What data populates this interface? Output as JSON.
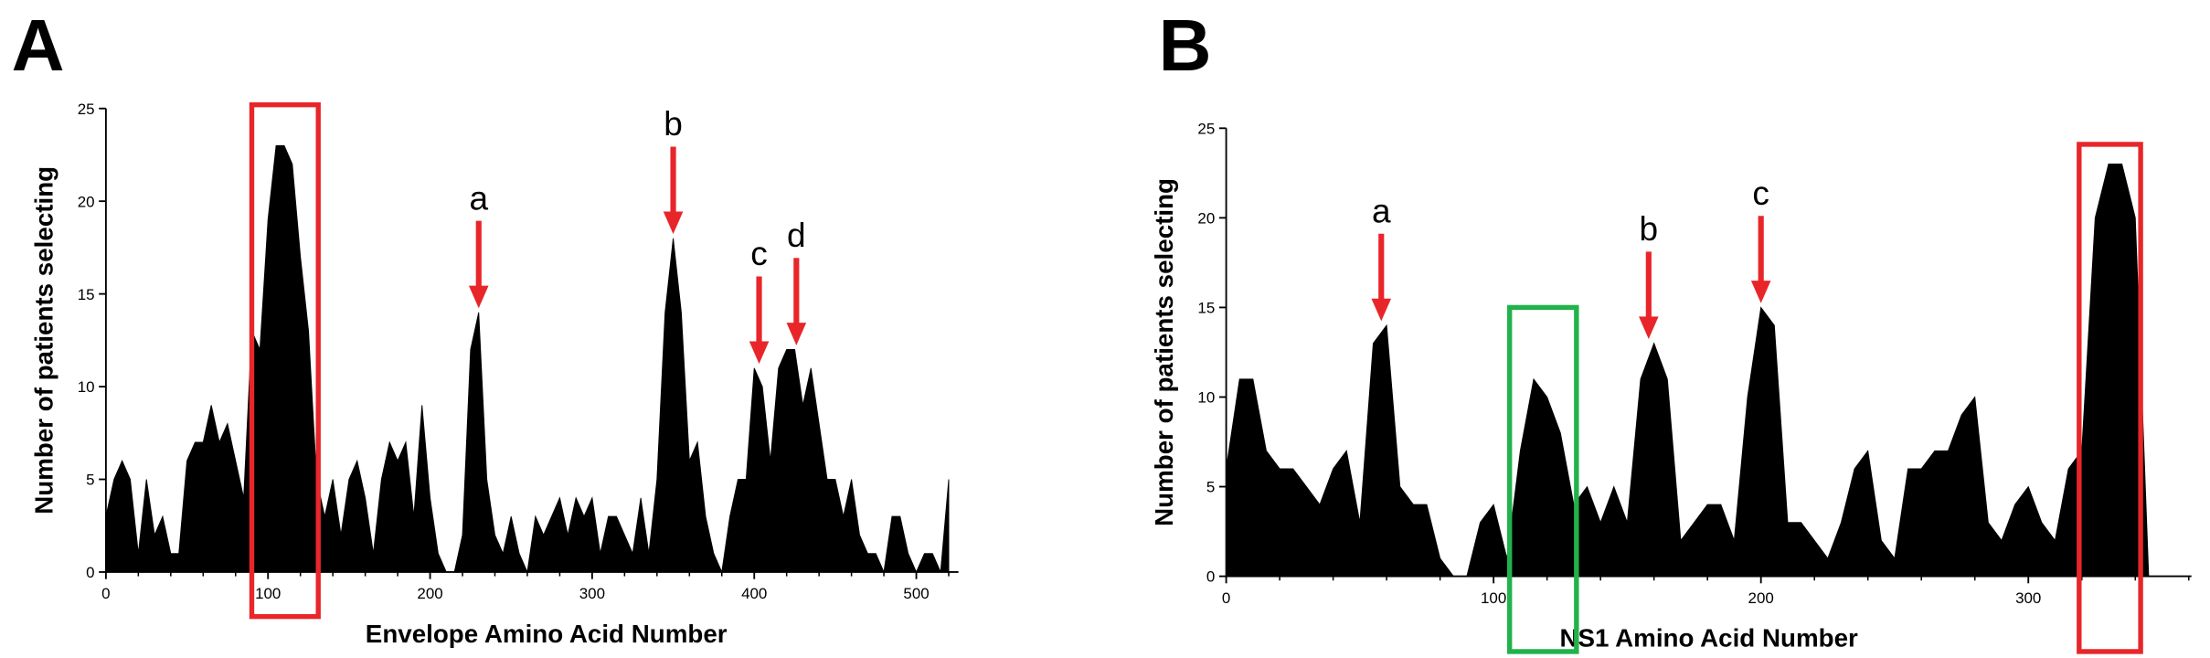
{
  "chart_data": [
    {
      "type": "area",
      "panel_label": "A",
      "xlabel": "Envelope Amino Acid Number",
      "ylabel": "Number of patients selecting",
      "color": "#000000",
      "xlim": [
        0,
        526
      ],
      "ylim": [
        0,
        25
      ],
      "xticks": [
        0,
        100,
        200,
        300,
        400,
        500
      ],
      "yticks": [
        0,
        5,
        10,
        15,
        20,
        25
      ],
      "x": [
        0,
        5,
        10,
        15,
        20,
        25,
        30,
        35,
        40,
        45,
        50,
        55,
        60,
        65,
        70,
        75,
        80,
        85,
        90,
        95,
        100,
        105,
        110,
        115,
        120,
        125,
        130,
        135,
        140,
        145,
        150,
        155,
        160,
        165,
        170,
        175,
        180,
        185,
        190,
        195,
        200,
        205,
        210,
        215,
        220,
        225,
        230,
        235,
        240,
        245,
        250,
        255,
        260,
        265,
        270,
        275,
        280,
        285,
        290,
        295,
        300,
        305,
        310,
        315,
        320,
        325,
        330,
        335,
        340,
        345,
        350,
        355,
        360,
        365,
        370,
        375,
        380,
        385,
        390,
        395,
        400,
        405,
        410,
        415,
        420,
        425,
        430,
        435,
        440,
        445,
        450,
        455,
        460,
        465,
        470,
        475,
        480,
        485,
        490,
        495,
        500,
        505,
        510,
        515,
        520
      ],
      "values": [
        3,
        5,
        6,
        5,
        1,
        5,
        2,
        3,
        1,
        1,
        6,
        7,
        7,
        9,
        7,
        8,
        6,
        4,
        13,
        12,
        19,
        23,
        23,
        22,
        17,
        13,
        5,
        3,
        5,
        2,
        5,
        6,
        4,
        1,
        5,
        7,
        6,
        7,
        3,
        9,
        4,
        1,
        0,
        0,
        2,
        12,
        14,
        5,
        2,
        1,
        3,
        1,
        0,
        3,
        2,
        3,
        4,
        2,
        4,
        3,
        4,
        1,
        3,
        3,
        2,
        1,
        4,
        1,
        5,
        14,
        18,
        14,
        6,
        7,
        3,
        1,
        0,
        3,
        5,
        5,
        11,
        10,
        6,
        11,
        12,
        12,
        9,
        11,
        8,
        5,
        5,
        3,
        5,
        2,
        1,
        1,
        0,
        3,
        3,
        1,
        0,
        1,
        1,
        0,
        5
      ],
      "annotations": [
        {
          "text": "a",
          "x": 230,
          "y": 14
        },
        {
          "text": "b",
          "x": 350,
          "y": 18
        },
        {
          "text": "c",
          "x": 403,
          "y": 11
        },
        {
          "text": "d",
          "x": 426,
          "y": 12
        }
      ],
      "boxes": [
        {
          "x": [
            90,
            131
          ],
          "y": [
            -2.4,
            25.2
          ],
          "color": "#e8262a"
        }
      ]
    },
    {
      "type": "area",
      "panel_label": "B",
      "xlabel": "NS1 Amino Acid Number",
      "ylabel": "Number of patients selecting",
      "color": "#000000",
      "xlim": [
        0,
        361
      ],
      "ylim": [
        0,
        25
      ],
      "xticks": [
        0,
        100,
        200,
        300
      ],
      "yticks": [
        0,
        5,
        10,
        15,
        20,
        25
      ],
      "x": [
        0,
        5,
        10,
        15,
        20,
        25,
        30,
        35,
        40,
        45,
        50,
        55,
        60,
        65,
        70,
        75,
        80,
        85,
        90,
        95,
        100,
        105,
        110,
        115,
        120,
        125,
        130,
        135,
        140,
        145,
        150,
        155,
        160,
        165,
        170,
        175,
        180,
        185,
        190,
        195,
        200,
        205,
        210,
        215,
        220,
        225,
        230,
        235,
        240,
        245,
        250,
        255,
        260,
        265,
        270,
        275,
        280,
        285,
        290,
        295,
        300,
        305,
        310,
        315,
        320,
        325,
        330,
        335,
        340,
        345
      ],
      "values": [
        6,
        11,
        11,
        7,
        6,
        6,
        5,
        4,
        6,
        7,
        3,
        13,
        14,
        5,
        4,
        4,
        1,
        0,
        0,
        3,
        4,
        1,
        7,
        11,
        10,
        8,
        4,
        5,
        3,
        5,
        3,
        11,
        13,
        11,
        2,
        3,
        4,
        4,
        2,
        10,
        15,
        14,
        3,
        3,
        2,
        1,
        3,
        6,
        7,
        2,
        1,
        6,
        6,
        7,
        7,
        9,
        10,
        3,
        2,
        4,
        5,
        3,
        2,
        6,
        7,
        20,
        23,
        23,
        20,
        0
      ],
      "annotations": [
        {
          "text": "a",
          "x": 58,
          "y": 14
        },
        {
          "text": "b",
          "x": 158,
          "y": 13
        },
        {
          "text": "c",
          "x": 200,
          "y": 15
        }
      ],
      "boxes": [
        {
          "x": [
            106,
            131
          ],
          "y": [
            -4.2,
            15
          ],
          "color": "#22b24c"
        },
        {
          "x": [
            319,
            342
          ],
          "y": [
            -4.2,
            24.1
          ],
          "color": "#e8262a"
        }
      ]
    }
  ]
}
